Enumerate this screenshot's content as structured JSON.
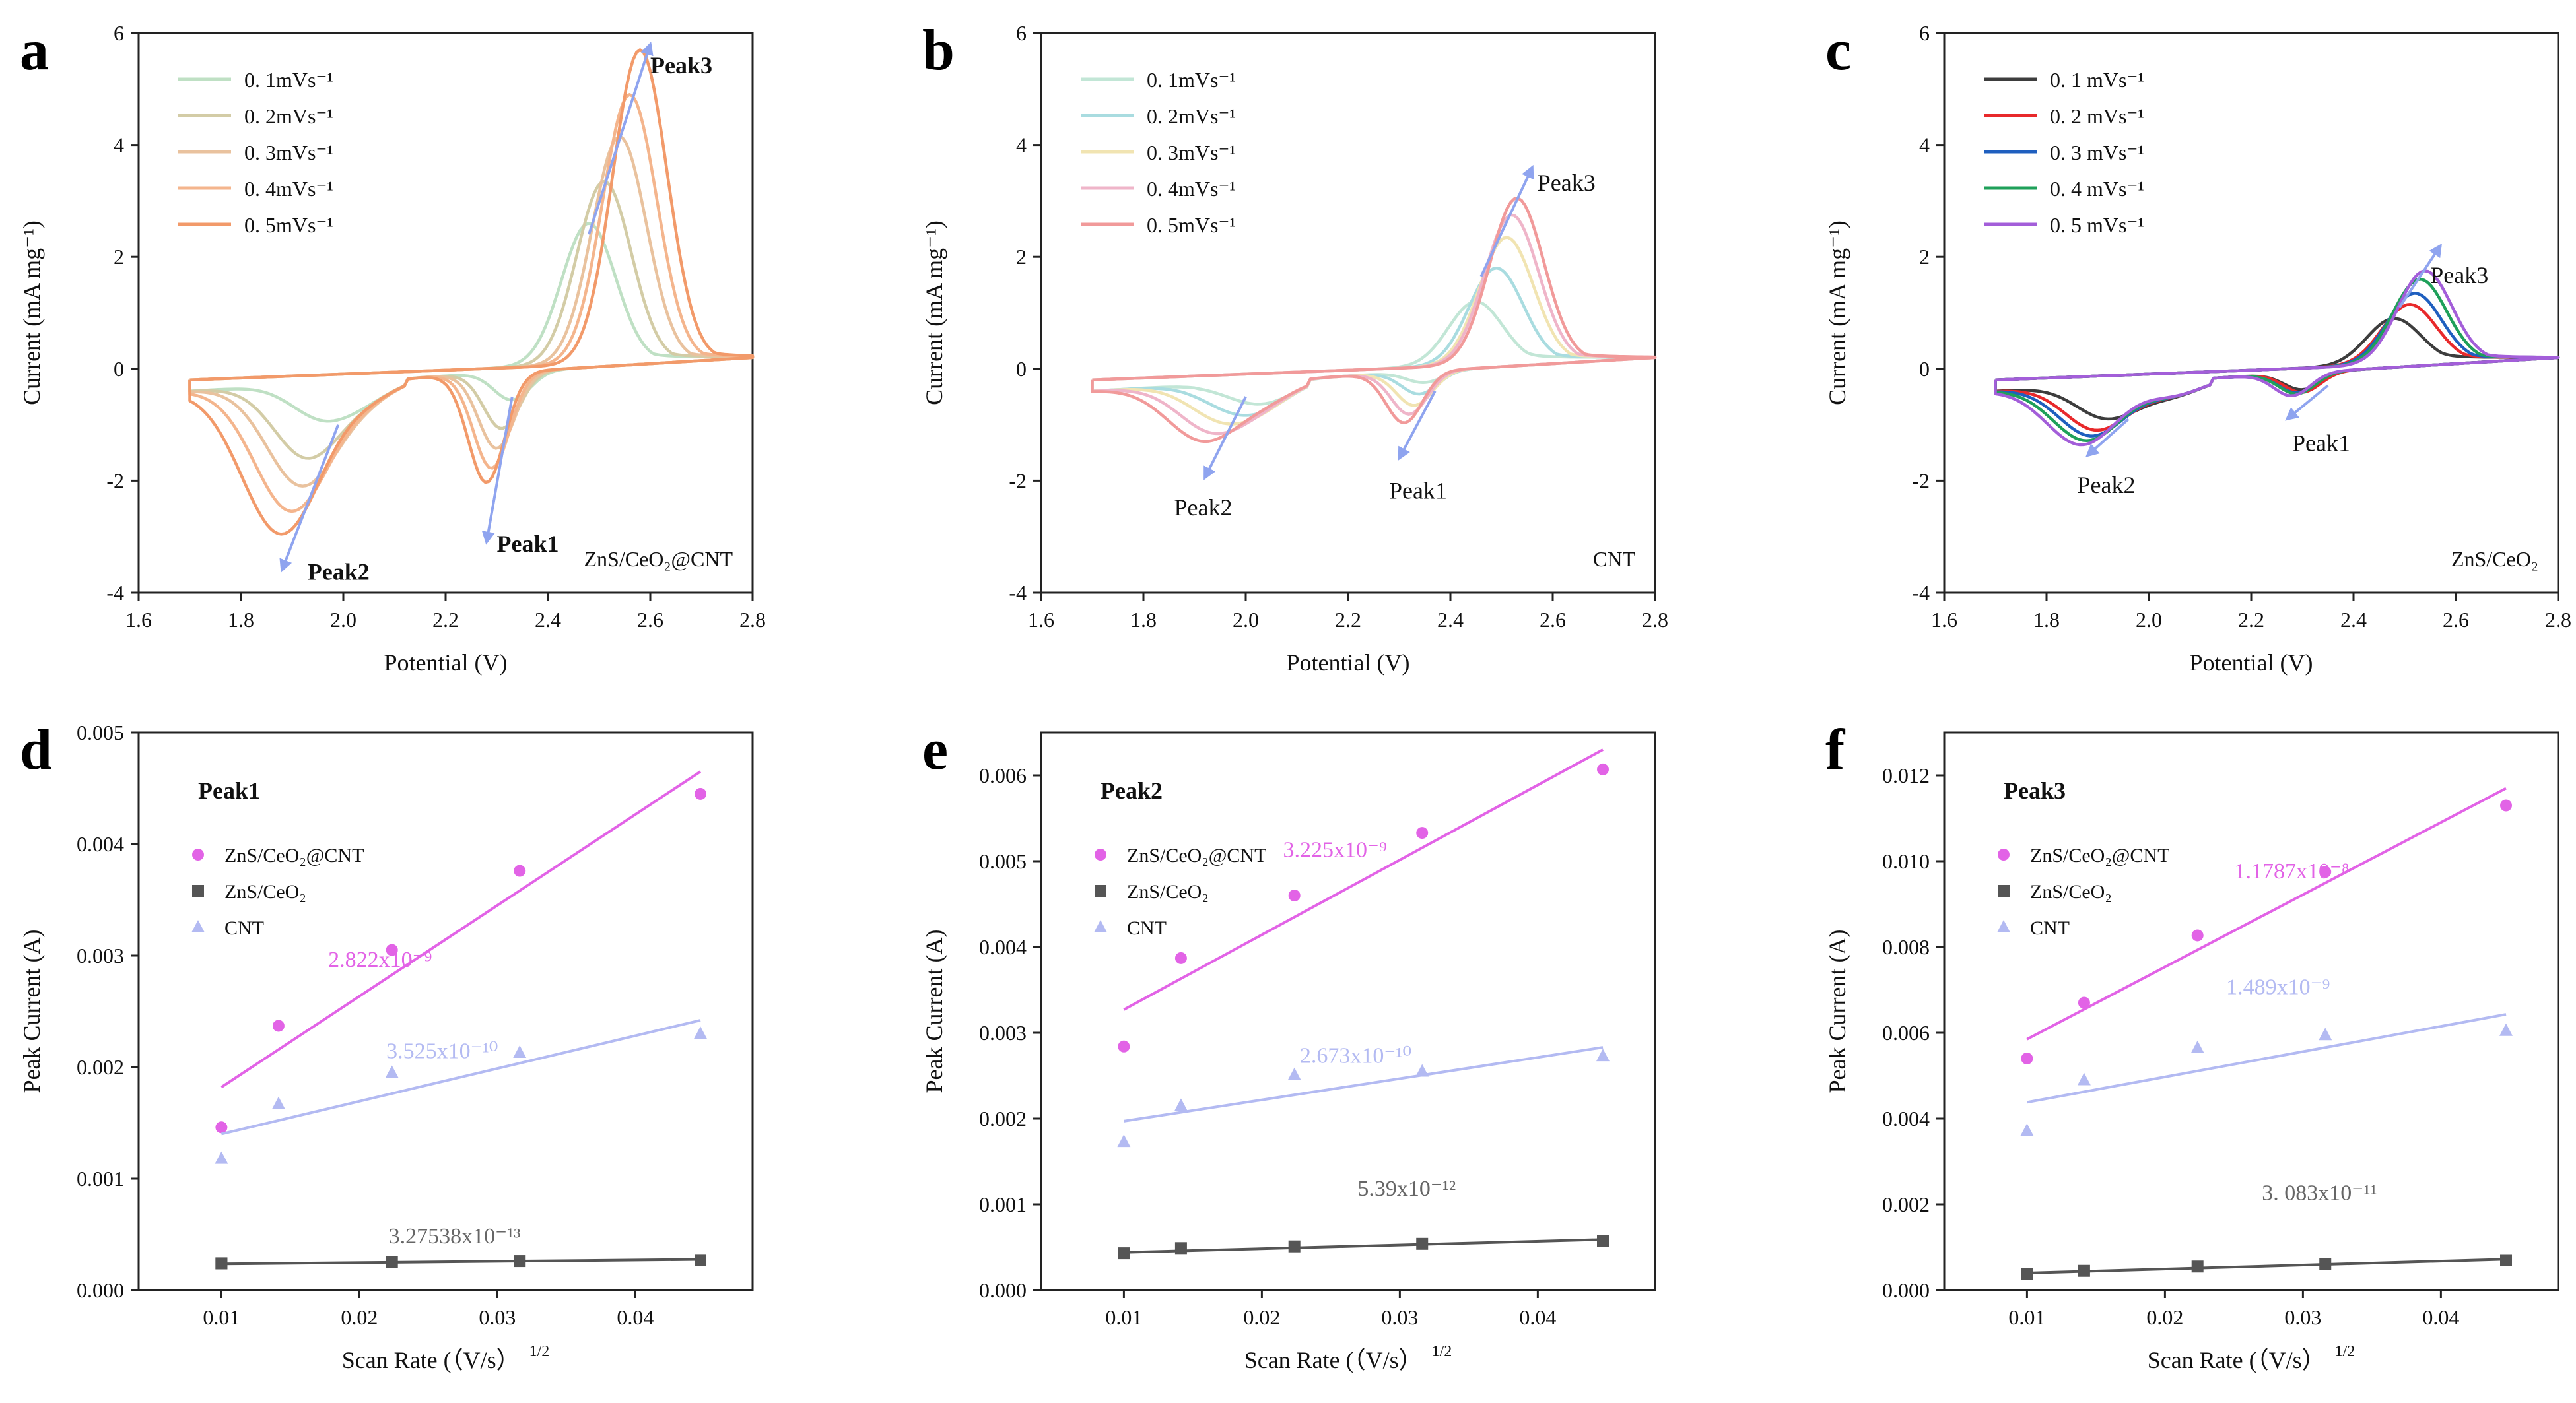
{
  "chart_data": [
    {
      "panel": "a",
      "type": "line",
      "annotation": "ZnS/CeO₂@CNT",
      "xlabel": "Potential (V)",
      "ylabel": "Current (mA mg⁻¹)",
      "xlim": [
        1.6,
        2.8
      ],
      "ylim": [
        -4,
        6
      ],
      "xticks": [
        "1.6",
        "1.8",
        "2.0",
        "2.2",
        "2.4",
        "2.6",
        "2.8"
      ],
      "yticks": [
        "-4",
        "-2",
        "0",
        "2",
        "4",
        "6"
      ],
      "legend_style": "short",
      "series": [
        {
          "name": "0. 1mVs⁻¹",
          "color": "#bfe0c4",
          "peak3": [
            2.48,
            2.6
          ],
          "peak1": [
            2.33,
            -0.75
          ],
          "peak2": [
            1.96,
            -1.0
          ],
          "shift": 0.0
        },
        {
          "name": "0. 2mVs⁻¹",
          "color": "#d3cca6",
          "peak3": [
            2.51,
            3.35
          ],
          "peak1": [
            2.31,
            -1.25
          ],
          "peak2": [
            1.93,
            -1.7
          ],
          "shift": 0.03
        },
        {
          "name": "0. 3mVs⁻¹",
          "color": "#e9c29e",
          "peak3": [
            2.54,
            4.15
          ],
          "peak1": [
            2.3,
            -1.6
          ],
          "peak2": [
            1.92,
            -2.2
          ],
          "shift": 0.06
        },
        {
          "name": "0. 4mVs⁻¹",
          "color": "#f4b58d",
          "peak3": [
            2.56,
            4.9
          ],
          "peak1": [
            2.29,
            -1.95
          ],
          "peak2": [
            1.9,
            -2.65
          ],
          "shift": 0.09
        },
        {
          "name": "0. 5mVs⁻¹",
          "color": "#f29a6a",
          "peak3": [
            2.58,
            5.7
          ],
          "peak1": [
            2.28,
            -2.2
          ],
          "peak2": [
            1.88,
            -3.05
          ],
          "shift": 0.12
        }
      ],
      "peak_labels": [
        {
          "text": "Peak3",
          "arrow": [
            [
              2.48,
              2.4
            ],
            [
              2.6,
              5.8
            ]
          ],
          "at": [
            2.6,
            5.4
          ]
        },
        {
          "text": "Peak1",
          "arrow": [
            [
              2.33,
              -0.5
            ],
            [
              2.28,
              -3.1
            ]
          ],
          "at": [
            2.3,
            -3.15
          ]
        },
        {
          "text": "Peak2",
          "arrow": [
            [
              1.99,
              -1.0
            ],
            [
              1.88,
              -3.6
            ]
          ],
          "at": [
            1.93,
            -3.65
          ]
        }
      ]
    },
    {
      "panel": "b",
      "type": "line",
      "annotation": "CNT",
      "xlabel": "Potential (V)",
      "ylabel": "Current (mA mg⁻¹)",
      "xlim": [
        1.6,
        2.8
      ],
      "ylim": [
        -4,
        6
      ],
      "xticks": [
        "1.6",
        "1.8",
        "2.0",
        "2.2",
        "2.4",
        "2.6",
        "2.8"
      ],
      "yticks": [
        "-4",
        "-2",
        "0",
        "2",
        "4",
        "6"
      ],
      "legend_style": "short",
      "series": [
        {
          "name": "0. 1mVs⁻¹",
          "color": "#c2e6d6",
          "peak3": [
            2.45,
            1.2
          ],
          "peak1": [
            2.35,
            -0.45
          ],
          "peak2": [
            2.0,
            -0.6
          ],
          "shift": 0.0
        },
        {
          "name": "0. 2mVs⁻¹",
          "color": "#a9dce0",
          "peak3": [
            2.49,
            1.8
          ],
          "peak1": [
            2.34,
            -0.65
          ],
          "peak2": [
            1.98,
            -0.85
          ],
          "shift": 0.02
        },
        {
          "name": "0. 3mVs⁻¹",
          "color": "#f1e4b2",
          "peak3": [
            2.51,
            2.35
          ],
          "peak1": [
            2.33,
            -0.85
          ],
          "peak2": [
            1.96,
            -1.05
          ],
          "shift": 0.04
        },
        {
          "name": "0. 4mVs⁻¹",
          "color": "#efb5c9",
          "peak3": [
            2.52,
            2.75
          ],
          "peak1": [
            2.32,
            -1.0
          ],
          "peak2": [
            1.94,
            -1.25
          ],
          "shift": 0.06
        },
        {
          "name": "0. 5mVs⁻¹",
          "color": "#f19a9a",
          "peak3": [
            2.53,
            3.05
          ],
          "peak1": [
            2.31,
            -1.15
          ],
          "peak2": [
            1.92,
            -1.4
          ],
          "shift": 0.08
        }
      ],
      "peak_labels": [
        {
          "text": "Peak3",
          "arrow": [
            [
              2.46,
              1.65
            ],
            [
              2.56,
              3.6
            ]
          ],
          "at": [
            2.57,
            3.3
          ]
        },
        {
          "text": "Peak1",
          "arrow": [
            [
              2.37,
              -0.4
            ],
            [
              2.3,
              -1.6
            ]
          ],
          "at": [
            2.28,
            -2.2
          ]
        },
        {
          "text": "Peak2",
          "arrow": [
            [
              2.0,
              -0.5
            ],
            [
              1.92,
              -1.95
            ]
          ],
          "at": [
            1.86,
            -2.5
          ]
        }
      ]
    },
    {
      "panel": "c",
      "type": "line",
      "annotation": "ZnS/CeO₂",
      "xlabel": "Potential (V)",
      "ylabel": "Current (mA mg⁻¹)",
      "xlim": [
        1.6,
        2.8
      ],
      "ylim": [
        -4,
        6
      ],
      "xticks": [
        "1.6",
        "1.8",
        "2.0",
        "2.2",
        "2.4",
        "2.6",
        "2.8"
      ],
      "yticks": [
        "-4",
        "-2",
        "0",
        "2",
        "4",
        "6"
      ],
      "legend_style": "long",
      "series": [
        {
          "name": "0. 1 mVs⁻¹",
          "color": "#3d3d3d",
          "peak3": [
            2.48,
            0.9
          ],
          "peak1": [
            2.3,
            -0.55
          ],
          "peak2": [
            1.92,
            -1.0
          ],
          "shift": 0.0
        },
        {
          "name": "0. 2 mVs⁻¹",
          "color": "#e8292b",
          "peak3": [
            2.51,
            1.15
          ],
          "peak1": [
            2.3,
            -0.6
          ],
          "peak2": [
            1.9,
            -1.2
          ],
          "shift": 0.015
        },
        {
          "name": "0. 3 mVs⁻¹",
          "color": "#1f5fbf",
          "peak3": [
            2.52,
            1.35
          ],
          "peak1": [
            2.29,
            -0.6
          ],
          "peak2": [
            1.89,
            -1.3
          ],
          "shift": 0.03
        },
        {
          "name": "0. 4 mVs⁻¹",
          "color": "#1fa05a",
          "peak3": [
            2.53,
            1.6
          ],
          "peak1": [
            2.29,
            -0.62
          ],
          "peak2": [
            1.88,
            -1.38
          ],
          "shift": 0.045
        },
        {
          "name": "0. 5 mVs⁻¹",
          "color": "#a35ed9",
          "peak3": [
            2.54,
            1.75
          ],
          "peak1": [
            2.28,
            -0.65
          ],
          "peak2": [
            1.87,
            -1.45
          ],
          "shift": 0.06
        }
      ],
      "peak_labels": [
        {
          "text": "Peak3",
          "arrow": [
            [
              2.49,
              1.1
            ],
            [
              2.57,
              2.2
            ]
          ],
          "at": [
            2.55,
            1.65
          ]
        },
        {
          "text": "Peak1",
          "arrow": [
            [
              2.35,
              -0.3
            ],
            [
              2.27,
              -0.9
            ]
          ],
          "at": [
            2.28,
            -1.35
          ]
        },
        {
          "text": "Peak2",
          "arrow": [
            [
              1.96,
              -0.9
            ],
            [
              1.88,
              -1.55
            ]
          ],
          "at": [
            1.86,
            -2.1
          ]
        }
      ]
    },
    {
      "panel": "d",
      "type": "scatter",
      "label": "Peak1",
      "xlabel": "Scan Rate (（V/s）",
      "xlabel_sup": "1/2",
      "ylabel": "Peak Current (A)",
      "xlim": [
        0.004,
        0.0485
      ],
      "ylim": [
        0,
        0.005
      ],
      "xticks": [
        "0.01",
        "0.02",
        "0.03",
        "0.04"
      ],
      "yticks": [
        "0.000",
        "0.001",
        "0.002",
        "0.003",
        "0.004",
        "0.005"
      ],
      "legend": [
        "ZnS/CeO₂@CNT",
        "ZnS/CeO₂",
        "CNT"
      ],
      "x": [
        0.01,
        0.01414,
        0.02236,
        0.03162,
        0.04472
      ],
      "series": [
        {
          "name": "ZnS/CeO₂@CNT",
          "marker": "circle",
          "color": "#e263e6",
          "values": [
            0.00146,
            0.00237,
            0.00305,
            0.00376,
            0.00445
          ],
          "fit": [
            0.00182,
            0.00465
          ],
          "slope_label": "2.822x10⁻⁹",
          "slope_at": [
            0.0215,
            0.0029
          ]
        },
        {
          "name": "ZnS/CeO₂",
          "marker": "square",
          "color": "#555555",
          "values": [
            0.00024,
            0.00024,
            0.00025,
            0.00026,
            0.00027
          ],
          "fit": [
            0.000235,
            0.000275
          ],
          "slope_label": "3.27538x10⁻¹³",
          "slope_at": [
            0.0269,
            0.00042
          ]
        },
        {
          "name": "CNT",
          "marker": "triangle",
          "color": "#b3baf2",
          "values": [
            0.00118,
            0.00167,
            0.00195,
            0.00213,
            0.0023
          ],
          "fit": [
            0.0014,
            0.00242
          ],
          "slope_label": "3.525x10⁻¹⁰",
          "slope_at": [
            0.026,
            0.00208
          ]
        }
      ]
    },
    {
      "panel": "e",
      "type": "scatter",
      "label": "Peak2",
      "xlabel": "Scan Rate (（V/s）",
      "xlabel_sup": "1/2",
      "ylabel": "Peak Current (A)",
      "xlim": [
        0.004,
        0.0485
      ],
      "ylim": [
        0,
        0.0065
      ],
      "xticks": [
        "0.01",
        "0.02",
        "0.03",
        "0.04"
      ],
      "yticks": [
        "0.000",
        "0.001",
        "0.002",
        "0.003",
        "0.004",
        "0.005",
        "0.006"
      ],
      "legend": [
        "ZnS/CeO₂@CNT",
        "ZnS/CeO₂",
        "CNT"
      ],
      "x": [
        0.01,
        0.01414,
        0.02236,
        0.03162,
        0.04472
      ],
      "series": [
        {
          "name": "ZnS/CeO₂@CNT",
          "marker": "circle",
          "color": "#e263e6",
          "values": [
            0.00284,
            0.00387,
            0.0046,
            0.00533,
            0.00607
          ],
          "fit": [
            0.00327,
            0.0063
          ],
          "slope_label": "3.225x10⁻⁹",
          "slope_at": [
            0.0253,
            0.00505
          ]
        },
        {
          "name": "ZnS/CeO₂",
          "marker": "square",
          "color": "#555555",
          "values": [
            0.00043,
            0.00049,
            0.00051,
            0.00054,
            0.00057
          ],
          "fit": [
            0.00044,
            0.00059
          ],
          "slope_label": "5.39x10⁻¹²",
          "slope_at": [
            0.0305,
            0.0011
          ]
        },
        {
          "name": "CNT",
          "marker": "triangle",
          "color": "#b3baf2",
          "values": [
            0.00173,
            0.00215,
            0.00251,
            0.00255,
            0.00273
          ],
          "fit": [
            0.00197,
            0.00283
          ],
          "slope_label": "2.673x10⁻¹⁰",
          "slope_at": [
            0.0268,
            0.00265
          ]
        }
      ]
    },
    {
      "panel": "f",
      "type": "scatter",
      "label": "Peak3",
      "xlabel": "Scan Rate (（V/s）",
      "xlabel_sup": "1/2",
      "ylabel": "Peak Current (A)",
      "xlim": [
        0.004,
        0.0485
      ],
      "ylim": [
        0,
        0.013
      ],
      "xticks": [
        "0.01",
        "0.02",
        "0.03",
        "0.04"
      ],
      "yticks": [
        "0.000",
        "0.002",
        "0.004",
        "0.006",
        "0.008",
        "0.010",
        "0.012"
      ],
      "legend": [
        "ZnS/CeO₂@CNT",
        "ZnS/CeO₂",
        "CNT"
      ],
      "x": [
        0.01,
        0.01414,
        0.02236,
        0.03162,
        0.04472
      ],
      "series": [
        {
          "name": "ZnS/CeO₂@CNT",
          "marker": "circle",
          "color": "#e263e6",
          "values": [
            0.0054,
            0.0067,
            0.00827,
            0.00975,
            0.0113
          ],
          "fit": [
            0.00585,
            0.0117
          ],
          "slope_label": "1.1787x10⁻⁸",
          "slope_at": [
            0.0292,
            0.0096
          ]
        },
        {
          "name": "ZnS/CeO₂",
          "marker": "square",
          "color": "#555555",
          "values": [
            0.00038,
            0.00045,
            0.00055,
            0.0006,
            0.0007
          ],
          "fit": [
            0.0004,
            0.00072
          ],
          "slope_label": "3. 083x10⁻¹¹",
          "slope_at": [
            0.0312,
            0.0021
          ]
        },
        {
          "name": "CNT",
          "marker": "triangle",
          "color": "#b3baf2",
          "values": [
            0.00372,
            0.0049,
            0.00565,
            0.00595,
            0.00605
          ],
          "fit": [
            0.00438,
            0.00643
          ],
          "slope_label": "1.489x10⁻⁹",
          "slope_at": [
            0.0282,
            0.0069
          ]
        }
      ]
    }
  ]
}
